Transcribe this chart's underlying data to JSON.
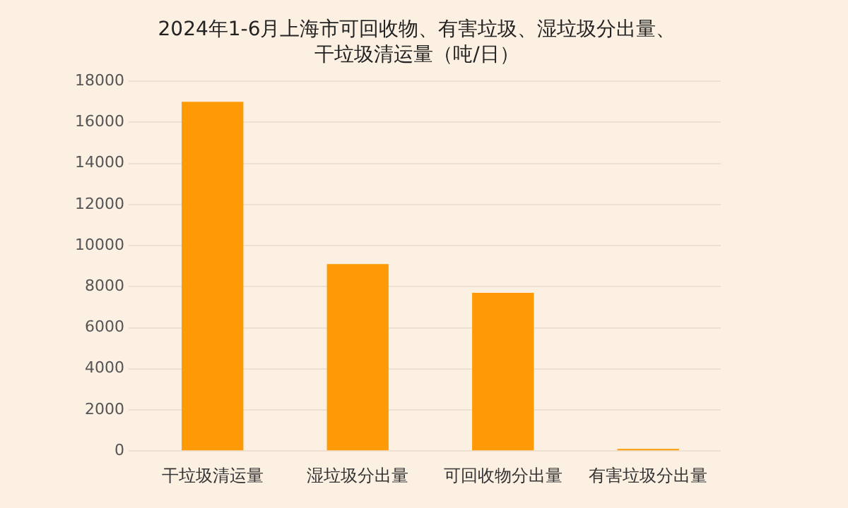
{
  "chart_data": {
    "type": "bar",
    "title": "2024年1-6月上海市可回收物、有害垃圾、湿垃圾分出量、干垃圾清运量（吨/日）",
    "categories": [
      "干垃圾清运量",
      "湿垃圾分出量",
      "可回收物分出量",
      "有害垃圾分出量"
    ],
    "values": [
      17000,
      9100,
      7700,
      100
    ],
    "color": "#fe9a05",
    "ylim": [
      0,
      18000
    ],
    "yticks": [
      0,
      2000,
      4000,
      6000,
      8000,
      10000,
      12000,
      14000,
      16000,
      18000
    ],
    "grid": "y"
  }
}
